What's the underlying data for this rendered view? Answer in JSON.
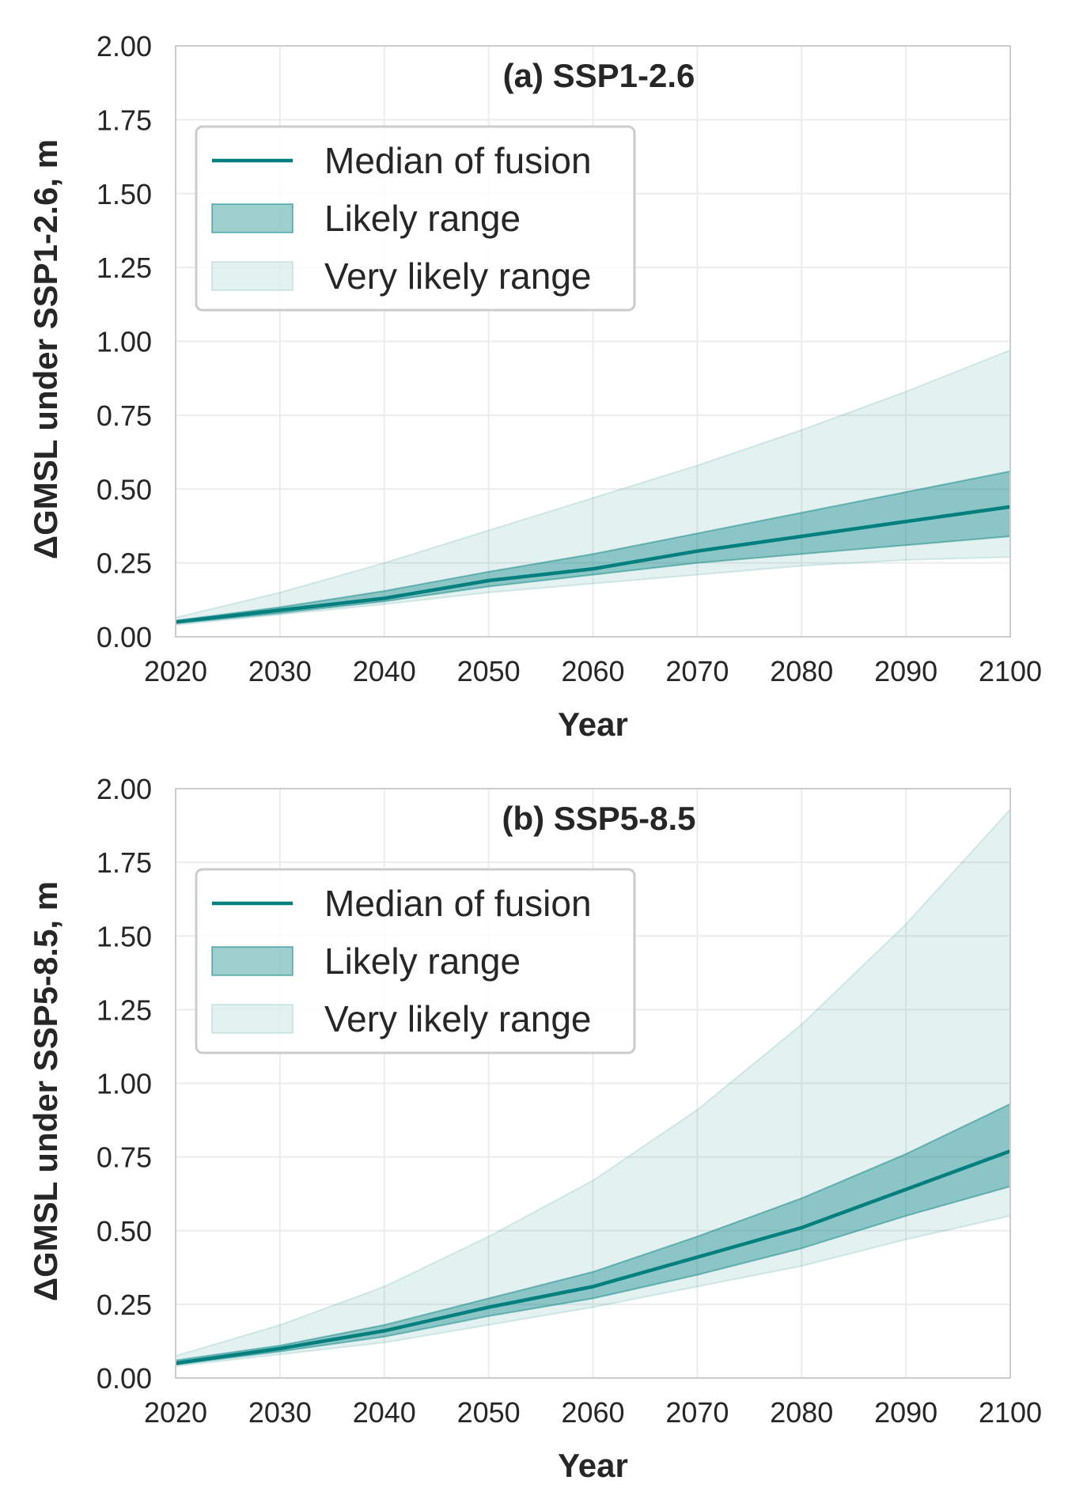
{
  "chart_data": [
    {
      "type": "area",
      "title": "(a) SSP1-2.6",
      "xlabel": "Year",
      "ylabel": "ΔGMSL under SSP1-2.6, m",
      "xlim": [
        2020,
        2100
      ],
      "ylim": [
        0,
        2
      ],
      "xticks": [
        "2020",
        "2030",
        "2040",
        "2050",
        "2060",
        "2070",
        "2080",
        "2090",
        "2100"
      ],
      "yticks": [
        "0.00",
        "0.25",
        "0.50",
        "0.75",
        "1.00",
        "1.25",
        "1.50",
        "1.75",
        "2.00"
      ],
      "grid": true,
      "legend_position": "upper-left",
      "x": [
        2020,
        2030,
        2040,
        2050,
        2060,
        2070,
        2080,
        2090,
        2100
      ],
      "series": [
        {
          "name": "Median of fusion",
          "kind": "line",
          "color": "#007f7f",
          "values": [
            0.05,
            0.09,
            0.13,
            0.19,
            0.23,
            0.29,
            0.34,
            0.39,
            0.44
          ]
        },
        {
          "name": "Likely range",
          "kind": "band",
          "color": "#007f7f",
          "lower": [
            0.045,
            0.08,
            0.12,
            0.17,
            0.21,
            0.25,
            0.28,
            0.31,
            0.34
          ],
          "upper": [
            0.055,
            0.1,
            0.155,
            0.22,
            0.28,
            0.35,
            0.42,
            0.49,
            0.56
          ]
        },
        {
          "name": "Very likely range",
          "kind": "band",
          "color": "#007f7f",
          "lower": [
            0.04,
            0.075,
            0.11,
            0.15,
            0.18,
            0.21,
            0.24,
            0.26,
            0.27
          ],
          "upper": [
            0.065,
            0.15,
            0.25,
            0.36,
            0.47,
            0.58,
            0.7,
            0.83,
            0.97
          ]
        }
      ]
    },
    {
      "type": "area",
      "title": "(b) SSP5-8.5",
      "xlabel": "Year",
      "ylabel": "ΔGMSL under SSP5-8.5, m",
      "xlim": [
        2020,
        2100
      ],
      "ylim": [
        0,
        2
      ],
      "xticks": [
        "2020",
        "2030",
        "2040",
        "2050",
        "2060",
        "2070",
        "2080",
        "2090",
        "2100"
      ],
      "yticks": [
        "0.00",
        "0.25",
        "0.50",
        "0.75",
        "1.00",
        "1.25",
        "1.50",
        "1.75",
        "2.00"
      ],
      "grid": true,
      "legend_position": "upper-left",
      "x": [
        2020,
        2030,
        2040,
        2050,
        2060,
        2070,
        2080,
        2090,
        2100
      ],
      "series": [
        {
          "name": "Median of fusion",
          "kind": "line",
          "color": "#007f7f",
          "values": [
            0.05,
            0.1,
            0.16,
            0.24,
            0.31,
            0.41,
            0.51,
            0.64,
            0.77
          ]
        },
        {
          "name": "Likely range",
          "kind": "band",
          "color": "#007f7f",
          "lower": [
            0.045,
            0.09,
            0.14,
            0.21,
            0.27,
            0.35,
            0.44,
            0.55,
            0.65
          ],
          "upper": [
            0.06,
            0.11,
            0.18,
            0.27,
            0.36,
            0.48,
            0.61,
            0.76,
            0.93
          ]
        },
        {
          "name": "Very likely range",
          "kind": "band",
          "color": "#007f7f",
          "lower": [
            0.04,
            0.08,
            0.12,
            0.18,
            0.24,
            0.31,
            0.38,
            0.47,
            0.55
          ],
          "upper": [
            0.075,
            0.18,
            0.31,
            0.48,
            0.67,
            0.91,
            1.2,
            1.54,
            1.93
          ]
        }
      ]
    }
  ]
}
